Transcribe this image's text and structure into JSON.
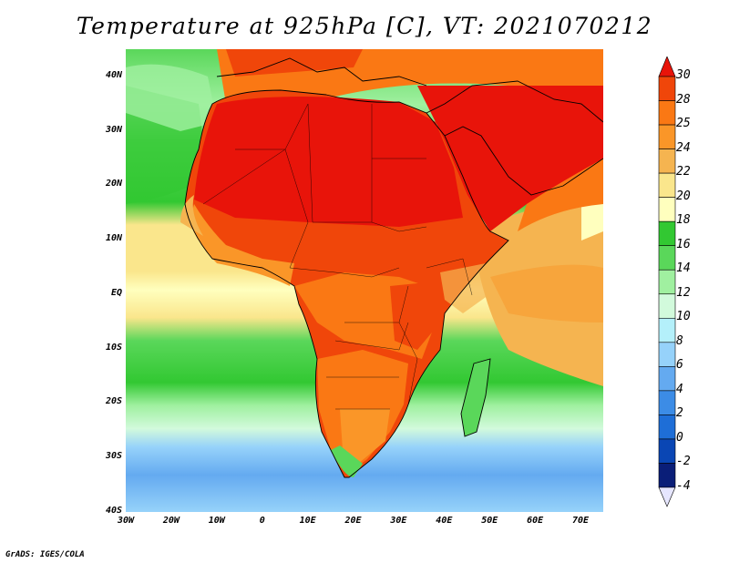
{
  "title": "Temperature at 925hPa [C], VT: 2021070212",
  "credit": "GrADS: IGES/COLA",
  "map": {
    "lat_labels": [
      "40N",
      "30N",
      "20N",
      "10N",
      "EQ",
      "10S",
      "20S",
      "30S",
      "40S"
    ],
    "lon_labels": [
      "30W",
      "20W",
      "10W",
      "0",
      "10E",
      "20E",
      "30E",
      "40E",
      "50E",
      "60E",
      "70E"
    ],
    "lat_range": [
      -40,
      45
    ],
    "lon_range": [
      -30,
      75
    ]
  },
  "colorbar": {
    "levels": [
      "30",
      "28",
      "25",
      "24",
      "22",
      "20",
      "18",
      "16",
      "14",
      "12",
      "10",
      "8",
      "6",
      "4",
      "2",
      "0",
      "-2",
      "-4"
    ],
    "colors": [
      "#e8140a",
      "#f0460a",
      "#fa7814",
      "#fa9628",
      "#f5b450",
      "#fae68c",
      "#ffffbe",
      "#32c832",
      "#5ad75a",
      "#a0f0a0",
      "#d2fadc",
      "#b4f0fa",
      "#96d2fa",
      "#64aaf0",
      "#3c8ce6",
      "#1e6ed7",
      "#0a46b4",
      "#0a1e78",
      "#e6e6ff"
    ]
  }
}
